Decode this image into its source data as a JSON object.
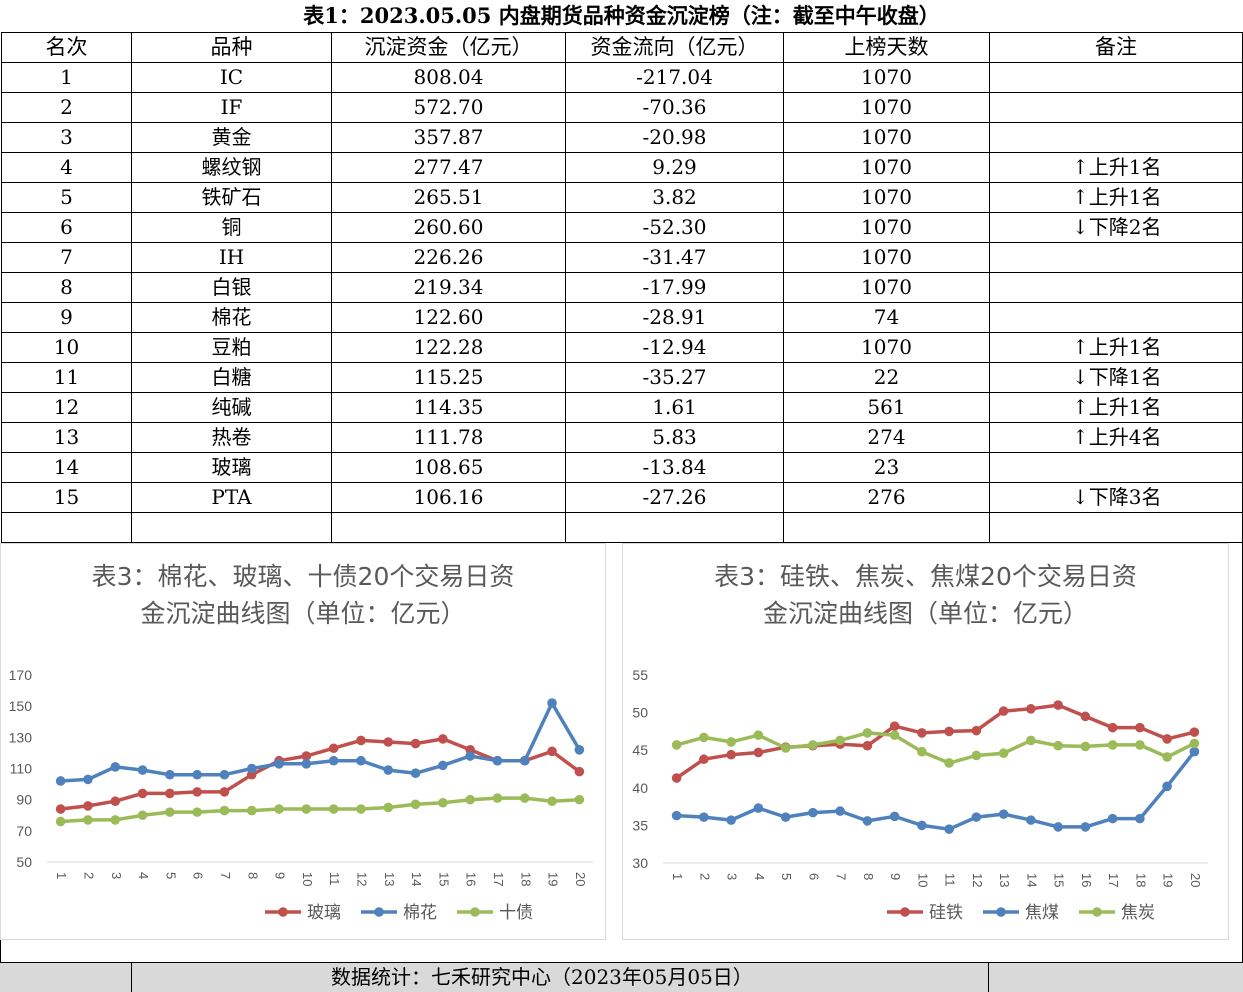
{
  "sheet_title": "表1：2023.05.05 内盘期货品种资金沉淀榜（注：截至中午收盘）",
  "table": {
    "headers": [
      "名次",
      "品种",
      "沉淀资金（亿元）",
      "资金流向（亿元）",
      "上榜天数",
      "备注"
    ],
    "rows": [
      [
        "1",
        "IC",
        "808.04",
        "-217.04",
        "1070",
        ""
      ],
      [
        "2",
        "IF",
        "572.70",
        "-70.36",
        "1070",
        ""
      ],
      [
        "3",
        "黄金",
        "357.87",
        "-20.98",
        "1070",
        ""
      ],
      [
        "4",
        "螺纹钢",
        "277.47",
        "9.29",
        "1070",
        "↑上升1名"
      ],
      [
        "5",
        "铁矿石",
        "265.51",
        "3.82",
        "1070",
        "↑上升1名"
      ],
      [
        "6",
        "铜",
        "260.60",
        "-52.30",
        "1070",
        "↓下降2名"
      ],
      [
        "7",
        "IH",
        "226.26",
        "-31.47",
        "1070",
        ""
      ],
      [
        "8",
        "白银",
        "219.34",
        "-17.99",
        "1070",
        ""
      ],
      [
        "9",
        "棉花",
        "122.60",
        "-28.91",
        "74",
        ""
      ],
      [
        "10",
        "豆粕",
        "122.28",
        "-12.94",
        "1070",
        "↑上升1名"
      ],
      [
        "11",
        "白糖",
        "115.25",
        "-35.27",
        "22",
        "↓下降1名"
      ],
      [
        "12",
        "纯碱",
        "114.35",
        "1.61",
        "561",
        "↑上升1名"
      ],
      [
        "13",
        "热卷",
        "111.78",
        "5.83",
        "274",
        "↑上升4名"
      ],
      [
        "14",
        "玻璃",
        "108.65",
        "-13.84",
        "23",
        ""
      ],
      [
        "15",
        "PTA",
        "106.16",
        "-27.26",
        "276",
        "↓下降3名"
      ],
      [
        "",
        "",
        "",
        "",
        "",
        ""
      ]
    ]
  },
  "footer": "数据统计：七禾研究中心（2023年05月05日）",
  "chart_data": [
    {
      "type": "line",
      "title_line1": "表3：棉花、玻璃、十债20个交易日资",
      "title_line2": "金沉淀曲线图（单位：亿元）",
      "x": [
        "1",
        "2",
        "3",
        "4",
        "5",
        "6",
        "7",
        "8",
        "9",
        "10",
        "11",
        "12",
        "13",
        "14",
        "15",
        "16",
        "17",
        "18",
        "19",
        "20"
      ],
      "ylim": [
        50,
        170
      ],
      "yticks": [
        50,
        70,
        90,
        110,
        130,
        150,
        170
      ],
      "grid": false,
      "legend_position": "bottom",
      "series": [
        {
          "name": "玻璃",
          "color": "#c0504d",
          "values": [
            84,
            86,
            89,
            94,
            94,
            95,
            95,
            106,
            115,
            118,
            123,
            128,
            127,
            126,
            129,
            122,
            115,
            115,
            121,
            108
          ]
        },
        {
          "name": "棉花",
          "color": "#4f81bd",
          "values": [
            102,
            103,
            111,
            109,
            106,
            106,
            106,
            110,
            113,
            113,
            115,
            115,
            109,
            107,
            112,
            118,
            115,
            115,
            152,
            122
          ]
        },
        {
          "name": "十债",
          "color": "#9bbb59",
          "values": [
            76,
            77,
            77,
            80,
            82,
            82,
            83,
            83,
            84,
            84,
            84,
            84,
            85,
            87,
            88,
            90,
            91,
            91,
            89,
            90
          ]
        }
      ]
    },
    {
      "type": "line",
      "title_line1": "表3：硅铁、焦炭、焦煤20个交易日资",
      "title_line2": "金沉淀曲线图（单位：亿元）",
      "x": [
        "1",
        "2",
        "3",
        "4",
        "5",
        "6",
        "7",
        "8",
        "9",
        "10",
        "11",
        "12",
        "13",
        "14",
        "15",
        "16",
        "17",
        "18",
        "19",
        "20"
      ],
      "ylim": [
        30,
        55
      ],
      "yticks": [
        30,
        35,
        40,
        45,
        50,
        55
      ],
      "grid": false,
      "legend_position": "bottom",
      "series": [
        {
          "name": "硅铁",
          "color": "#c0504d",
          "values": [
            41.3,
            43.8,
            44.4,
            44.7,
            45.4,
            45.6,
            45.8,
            45.6,
            48.2,
            47.3,
            47.5,
            47.6,
            50.2,
            50.5,
            51.0,
            49.5,
            48.0,
            48.0,
            46.5,
            47.4
          ]
        },
        {
          "name": "焦煤",
          "color": "#4f81bd",
          "values": [
            36.3,
            36.1,
            35.7,
            37.3,
            36.1,
            36.7,
            36.9,
            35.6,
            36.2,
            35.0,
            34.5,
            36.1,
            36.5,
            35.7,
            34.8,
            34.8,
            35.9,
            35.9,
            40.2,
            44.8
          ]
        },
        {
          "name": "焦炭",
          "color": "#9bbb59",
          "values": [
            45.7,
            46.7,
            46.1,
            47.0,
            45.3,
            45.7,
            46.3,
            47.3,
            47.0,
            44.8,
            43.3,
            44.3,
            44.6,
            46.3,
            45.6,
            45.5,
            45.7,
            45.7,
            44.1,
            45.9
          ]
        }
      ]
    }
  ]
}
